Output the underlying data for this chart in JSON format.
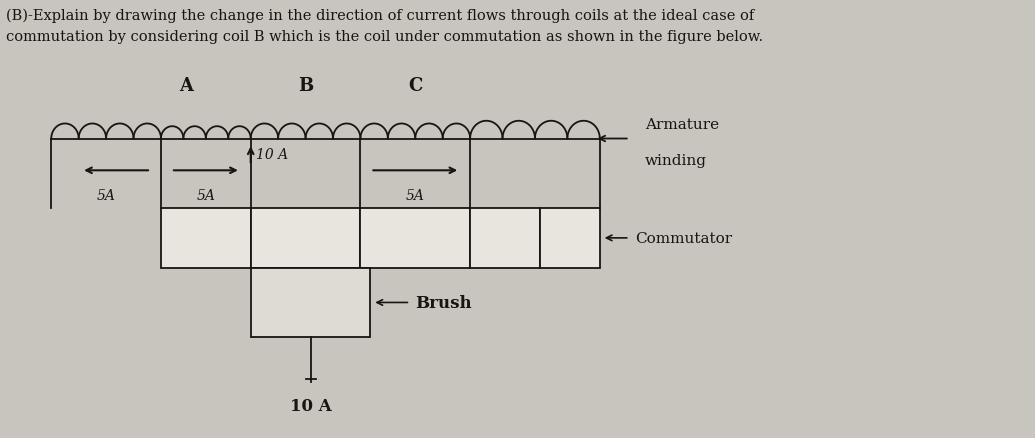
{
  "title_line1": "(B)-Explain by drawing the change in the direction of current flows through coils at the ideal case of",
  "title_line2": "commutation by considering coil B which is the coil under commutation as shown in the figure below.",
  "background_color": "#c8c4be",
  "text_color": "#1a1410",
  "coil_labels": [
    "A",
    "B",
    "C"
  ],
  "armature_text": [
    "Armature",
    "winding"
  ],
  "commutator_text": "Commutator",
  "brush_text": "Brush",
  "bottom_current": "10 A",
  "fig_w": 10.35,
  "fig_h": 4.39,
  "dpi": 100,
  "comm_segs": 5,
  "comm_fc": "#e8e4de",
  "brush_fc": "#dedad4"
}
